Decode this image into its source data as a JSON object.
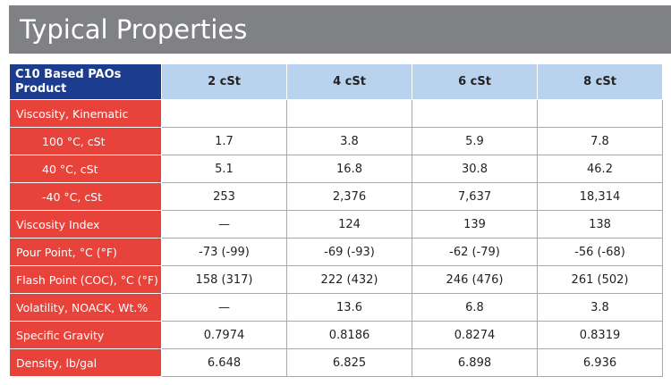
{
  "header": {
    "title": "Typical Properties"
  },
  "table": {
    "corner": [
      "C10 Based PAOs",
      "Product"
    ],
    "columns": [
      "2 cSt",
      "4 cSt",
      "6 cSt",
      "8 cSt"
    ],
    "rows": [
      {
        "label": "Viscosity, Kinematic"
      },
      {
        "label": "100 °C, cSt",
        "indent": true,
        "values": [
          "1.7",
          "3.8",
          "5.9",
          "7.8"
        ]
      },
      {
        "label": "40 °C, cSt",
        "indent": true,
        "values": [
          "5.1",
          "16.8",
          "30.8",
          "46.2"
        ]
      },
      {
        "label": "-40 °C, cSt",
        "indent": true,
        "values": [
          "253",
          "2,376",
          "7,637",
          "18,314"
        ]
      },
      {
        "label": "Viscosity Index",
        "values": [
          "—",
          "124",
          "139",
          "138"
        ]
      },
      {
        "label": "Pour Point, °C (°F)",
        "values": [
          "-73 (-99)",
          "-69 (-93)",
          "-62 (-79)",
          "-56 (-68)"
        ]
      },
      {
        "label": "Flash Point (COC), °C (°F)",
        "values": [
          "158 (317)",
          "222 (432)",
          "246 (476)",
          "261 (502)"
        ]
      },
      {
        "label": "Volatility, NOACK, Wt.%",
        "values": [
          "—",
          "13.6",
          "6.8",
          "3.8"
        ]
      },
      {
        "label": "Specific Gravity",
        "values": [
          "0.7974",
          "0.8186",
          "0.8274",
          "0.8319"
        ]
      },
      {
        "label": "Density, lb/gal",
        "values": [
          "6.648",
          "6.825",
          "6.898",
          "6.936"
        ]
      }
    ]
  }
}
